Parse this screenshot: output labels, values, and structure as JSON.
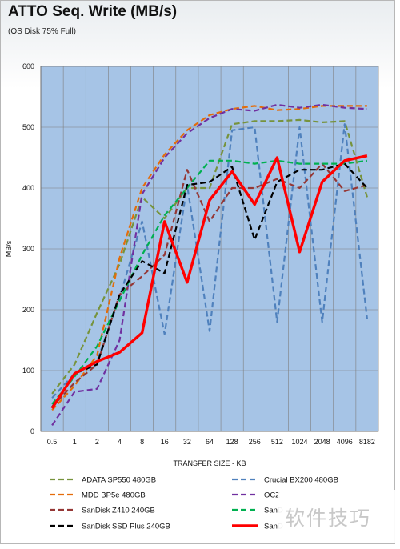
{
  "chart_data": {
    "type": "line",
    "title": "ATTO Seq. Write (MB/s)",
    "subtitle": "(OS Disk 75% Full)",
    "xlabel": "TRANSFER SIZE - KB",
    "ylabel": "MB/s",
    "ylim": [
      0,
      600
    ],
    "yticks": [
      0,
      100,
      200,
      300,
      400,
      500,
      600
    ],
    "grid": true,
    "legend_position": "bottom",
    "plot_background": "#a6c4e6",
    "categories": [
      "0.5",
      "1",
      "2",
      "4",
      "8",
      "16",
      "32",
      "64",
      "128",
      "256",
      "512",
      "1024",
      "2048",
      "4096",
      "8182"
    ],
    "series": [
      {
        "name": "ADATA SP550 480GB",
        "color": "#77933c",
        "dash": true,
        "width": 2.2,
        "values": [
          62,
          110,
          195,
          275,
          385,
          350,
          400,
          400,
          505,
          510,
          510,
          512,
          508,
          510,
          385
        ]
      },
      {
        "name": "Crucial BX200 480GB",
        "color": "#4f81bd",
        "dash": true,
        "width": 2.2,
        "values": [
          55,
          95,
          115,
          220,
          345,
          160,
          405,
          165,
          495,
          500,
          180,
          500,
          180,
          505,
          185
        ]
      },
      {
        "name": "MDD BP5e 480GB",
        "color": "#e46c0a",
        "dash": true,
        "width": 2.2,
        "values": [
          35,
          75,
          125,
          285,
          400,
          455,
          495,
          520,
          530,
          535,
          528,
          530,
          535,
          535,
          535
        ]
      },
      {
        "name": "OCZ",
        "color": "#7030a0",
        "dash": true,
        "width": 2.2,
        "values": [
          10,
          65,
          70,
          150,
          390,
          450,
          490,
          515,
          530,
          527,
          537,
          532,
          537,
          532,
          530
        ]
      },
      {
        "name": "SanDisk Z410 240GB",
        "color": "#953735",
        "dash": true,
        "width": 2.2,
        "values": [
          40,
          80,
          110,
          225,
          255,
          290,
          430,
          345,
          400,
          400,
          415,
          400,
          440,
          395,
          405
        ]
      },
      {
        "name": "SanD",
        "color": "#00b050",
        "dash": true,
        "width": 2.2,
        "values": [
          45,
          90,
          140,
          215,
          290,
          355,
          400,
          445,
          445,
          440,
          445,
          440,
          440,
          440,
          445
        ]
      },
      {
        "name": "SanDisk SSD Plus 240GB",
        "color": "#000000",
        "dash": true,
        "width": 2.2,
        "values": [
          40,
          95,
          110,
          225,
          280,
          260,
          405,
          410,
          435,
          315,
          410,
          430,
          430,
          440,
          400
        ]
      },
      {
        "name": "SanD",
        "color": "#ff0000",
        "dash": false,
        "width": 3.4,
        "values": [
          38,
          95,
          115,
          130,
          162,
          345,
          245,
          380,
          427,
          373,
          450,
          295,
          410,
          445,
          453
        ]
      }
    ]
  },
  "watermark": {
    "text": "软件技巧"
  }
}
